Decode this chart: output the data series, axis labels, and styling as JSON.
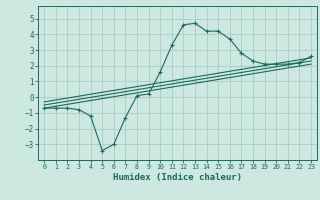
{
  "xlabel": "Humidex (Indice chaleur)",
  "bg_color": "#cce8e0",
  "grid_color": "#aaccc4",
  "line_color": "#1a6b5a",
  "xlim": [
    -0.5,
    23.5
  ],
  "ylim": [
    -4.0,
    5.8
  ],
  "yticks": [
    -3,
    -2,
    -1,
    0,
    1,
    2,
    3,
    4,
    5
  ],
  "xticks": [
    0,
    1,
    2,
    3,
    4,
    5,
    6,
    7,
    8,
    9,
    10,
    11,
    12,
    13,
    14,
    15,
    16,
    17,
    18,
    19,
    20,
    21,
    22,
    23
  ],
  "curve1_x": [
    0,
    1,
    2,
    3,
    4,
    5,
    6,
    7,
    8,
    9,
    10,
    11,
    12,
    13,
    14,
    15,
    16,
    17,
    18,
    19,
    20,
    21,
    22,
    23
  ],
  "curve1_y": [
    -0.7,
    -0.7,
    -0.7,
    -0.8,
    -1.2,
    -3.4,
    -3.0,
    -1.3,
    0.1,
    0.2,
    1.6,
    3.3,
    4.6,
    4.7,
    4.2,
    4.2,
    3.7,
    2.8,
    2.3,
    2.1,
    2.1,
    2.1,
    2.2,
    2.6
  ],
  "line2_x": [
    0,
    23
  ],
  "line2_y": [
    -0.7,
    2.1
  ],
  "line3_x": [
    0,
    23
  ],
  "line3_y": [
    -0.5,
    2.3
  ],
  "line4_x": [
    0,
    23
  ],
  "line4_y": [
    -0.3,
    2.5
  ]
}
